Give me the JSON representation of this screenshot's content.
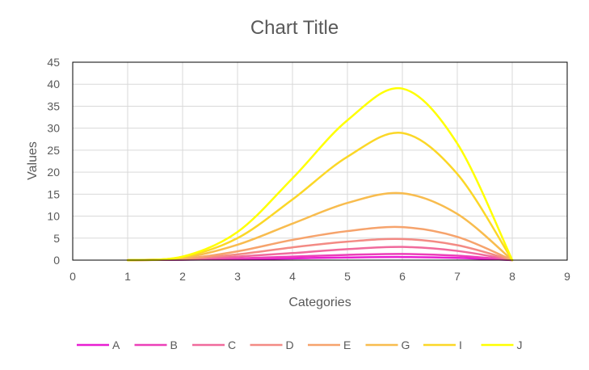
{
  "chart_data": {
    "type": "scatter",
    "title": "Chart Title",
    "xlabel": "Categories",
    "ylabel": "Values",
    "xlim": [
      0,
      9
    ],
    "ylim": [
      0,
      45
    ],
    "x_ticks": [
      0,
      1,
      2,
      3,
      4,
      5,
      6,
      7,
      8,
      9
    ],
    "y_ticks": [
      0,
      5,
      10,
      15,
      20,
      25,
      30,
      35,
      40,
      45
    ],
    "grid": true,
    "smooth": true,
    "legend_position": "bottom",
    "x": [
      1,
      2,
      3,
      4,
      5,
      6,
      7,
      8
    ],
    "series": [
      {
        "name": "A",
        "color": "#e81ed2",
        "values": [
          0,
          0.1,
          0.2,
          0.4,
          0.6,
          0.7,
          0.5,
          0
        ]
      },
      {
        "name": "B",
        "color": "#ec3fb8",
        "values": [
          0,
          0.1,
          0.4,
          0.8,
          1.2,
          1.4,
          1.0,
          0
        ]
      },
      {
        "name": "C",
        "color": "#f06a9c",
        "values": [
          0,
          0.2,
          0.8,
          1.6,
          2.5,
          3.0,
          2.1,
          0
        ]
      },
      {
        "name": "D",
        "color": "#f38a84",
        "values": [
          0,
          0.3,
          1.3,
          2.9,
          4.2,
          4.8,
          3.4,
          0
        ]
      },
      {
        "name": "E",
        "color": "#f6a36c",
        "values": [
          0,
          0.3,
          2.0,
          4.6,
          6.6,
          7.5,
          5.3,
          0
        ]
      },
      {
        "name": "G",
        "color": "#f8bc4e",
        "values": [
          0,
          0.5,
          3.5,
          8.3,
          13.0,
          15.2,
          10.5,
          0
        ]
      },
      {
        "name": "I",
        "color": "#fbd727",
        "values": [
          0,
          0.7,
          5.0,
          13.8,
          23.5,
          28.9,
          19.6,
          0
        ]
      },
      {
        "name": "J",
        "color": "#ffff00",
        "values": [
          0,
          0.8,
          6.4,
          18.6,
          31.8,
          39.0,
          26.5,
          0
        ]
      }
    ]
  }
}
